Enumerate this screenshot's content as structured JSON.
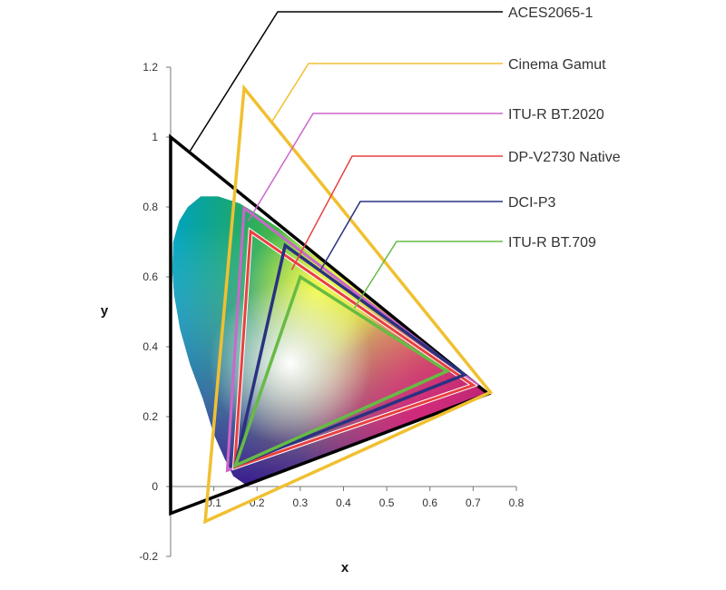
{
  "chart_data": {
    "type": "scatter",
    "title": "",
    "xlabel": "x",
    "ylabel": "y",
    "xlim": [
      0,
      0.8
    ],
    "ylim": [
      -0.2,
      1.2
    ],
    "x_ticks": [
      "0.1",
      "0.2",
      "0.3",
      "0.4",
      "0.5",
      "0.6",
      "0.7",
      "0.8"
    ],
    "y_ticks": [
      "-0.2",
      "0",
      "0.2",
      "0.4",
      "0.6",
      "0.8",
      "1",
      "1.2"
    ],
    "x_tick_values": [
      0.1,
      0.2,
      0.3,
      0.4,
      0.5,
      0.6,
      0.7,
      0.8
    ],
    "y_tick_values": [
      -0.2,
      0,
      0.2,
      0.4,
      0.6,
      0.8,
      1.0,
      1.2
    ],
    "grid": false,
    "legend_position": "right",
    "spectral_locus": [
      [
        0.174,
        0.005
      ],
      [
        0.145,
        0.03
      ],
      [
        0.125,
        0.08
      ],
      [
        0.1,
        0.15
      ],
      [
        0.075,
        0.25
      ],
      [
        0.045,
        0.35
      ],
      [
        0.022,
        0.45
      ],
      [
        0.008,
        0.55
      ],
      [
        0.004,
        0.62
      ],
      [
        0.006,
        0.7
      ],
      [
        0.02,
        0.76
      ],
      [
        0.04,
        0.8
      ],
      [
        0.07,
        0.83
      ],
      [
        0.11,
        0.83
      ],
      [
        0.16,
        0.81
      ],
      [
        0.2,
        0.78
      ],
      [
        0.25,
        0.74
      ],
      [
        0.3,
        0.69
      ],
      [
        0.35,
        0.645
      ],
      [
        0.4,
        0.595
      ],
      [
        0.45,
        0.545
      ],
      [
        0.5,
        0.495
      ],
      [
        0.55,
        0.445
      ],
      [
        0.6,
        0.395
      ],
      [
        0.65,
        0.345
      ],
      [
        0.7,
        0.3
      ],
      [
        0.735,
        0.265
      ]
    ],
    "series": [
      {
        "name": "ACES2065-1",
        "color": "#000000",
        "points": [
          [
            0.7347,
            0.2653
          ],
          [
            0.0,
            1.0
          ],
          [
            0.0001,
            -0.077
          ]
        ]
      },
      {
        "name": "Cinema Gamut",
        "color": "#f0c030",
        "points": [
          [
            0.74,
            0.27
          ],
          [
            0.17,
            1.14
          ],
          [
            0.08,
            -0.1
          ]
        ]
      },
      {
        "name": "ITU-R BT.2020",
        "color": "#cc66cc",
        "points": [
          [
            0.708,
            0.292
          ],
          [
            0.17,
            0.797
          ],
          [
            0.131,
            0.046
          ]
        ]
      },
      {
        "name": "DP-V2730 Native",
        "color": "#e84040",
        "points": [
          [
            0.7,
            0.29
          ],
          [
            0.185,
            0.73
          ],
          [
            0.148,
            0.055
          ]
        ]
      },
      {
        "name": "DCI-P3",
        "color": "#2a3280",
        "points": [
          [
            0.68,
            0.32
          ],
          [
            0.265,
            0.69
          ],
          [
            0.15,
            0.06
          ]
        ]
      },
      {
        "name": "ITU-R BT.709",
        "color": "#66bb44",
        "points": [
          [
            0.64,
            0.33
          ],
          [
            0.3,
            0.6
          ],
          [
            0.15,
            0.06
          ]
        ]
      }
    ]
  }
}
